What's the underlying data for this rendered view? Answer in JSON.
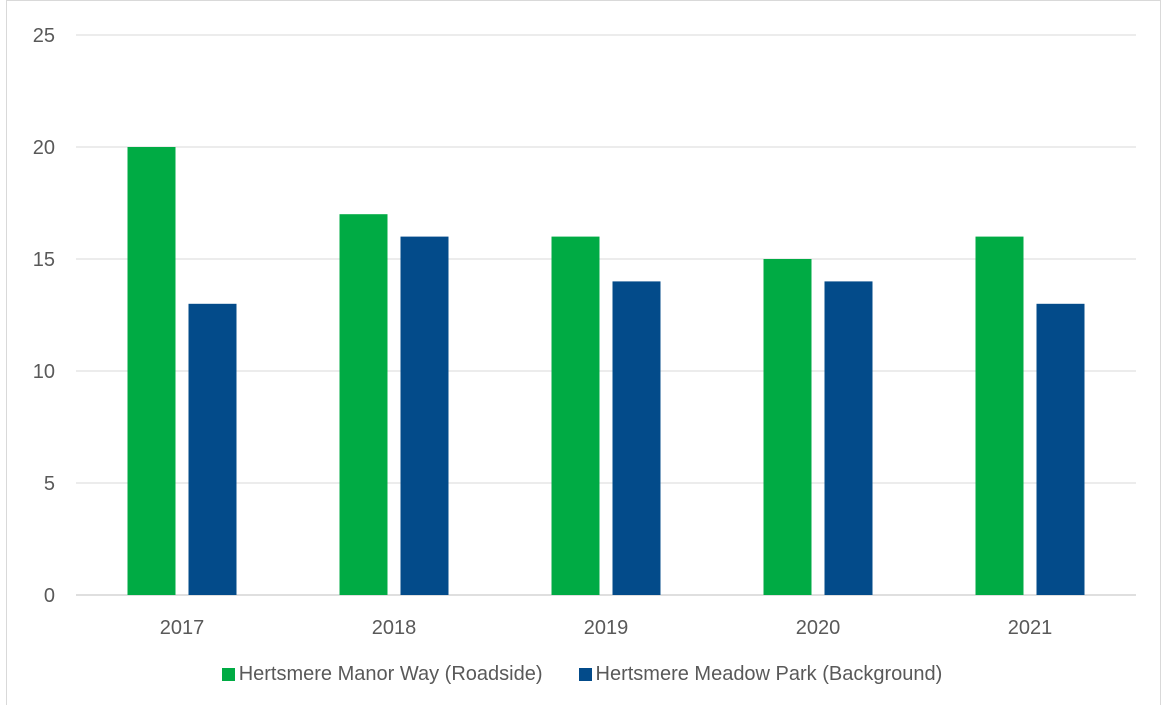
{
  "chart_data": {
    "type": "bar",
    "categories": [
      "2017",
      "2018",
      "2019",
      "2020",
      "2021"
    ],
    "series": [
      {
        "name": "Hertsmere Manor Way (Roadside)",
        "color": "#00ab44",
        "values": [
          20,
          17,
          16,
          15,
          16
        ]
      },
      {
        "name": "Hertsmere Meadow Park (Background)",
        "color": "#034b8a",
        "values": [
          13,
          16,
          14,
          14,
          13
        ]
      }
    ],
    "y_ticks": [
      "0",
      "5",
      "10",
      "15",
      "20",
      "25"
    ],
    "ylim": [
      0,
      25
    ],
    "grid": true,
    "legend_position": "bottom"
  }
}
